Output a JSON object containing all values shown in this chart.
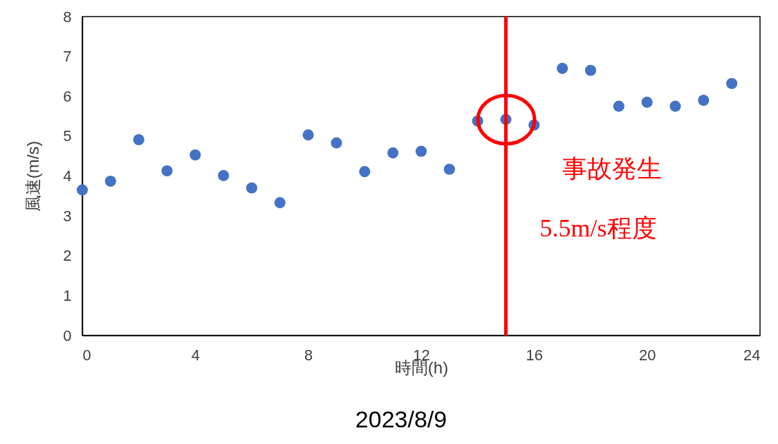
{
  "chart_data": {
    "type": "scatter",
    "xlabel": "時間(h)",
    "ylabel": "風速(m/s)",
    "x": [
      0,
      1,
      2,
      3,
      4,
      5,
      6,
      7,
      8,
      9,
      10,
      11,
      12,
      13,
      14,
      15,
      16,
      17,
      18,
      19,
      20,
      21,
      22,
      23
    ],
    "series": [
      {
        "color": "#4472c4",
        "values": [
          3.65,
          3.87,
          4.91,
          4.13,
          4.53,
          4.01,
          3.7,
          3.33,
          5.03,
          4.83,
          4.11,
          4.58,
          4.62,
          4.17,
          5.38,
          5.42,
          5.28,
          6.7,
          6.65,
          5.75,
          5.85,
          5.75,
          5.9,
          6.32
        ]
      }
    ],
    "xlim": [
      0,
      24
    ],
    "xticks": [
      0,
      4,
      8,
      12,
      16,
      20,
      24
    ],
    "ylim": [
      0,
      8
    ],
    "yticks": [
      0,
      1,
      2,
      3,
      4,
      5,
      6,
      7,
      8
    ],
    "grid": false,
    "marker": "circle",
    "ref_lines": [
      {
        "axis": "x",
        "value": 15,
        "color": "#ff0000"
      }
    ],
    "annotations": [
      "事故発生",
      "5.5m/s程度",
      "2023/8/9"
    ]
  }
}
